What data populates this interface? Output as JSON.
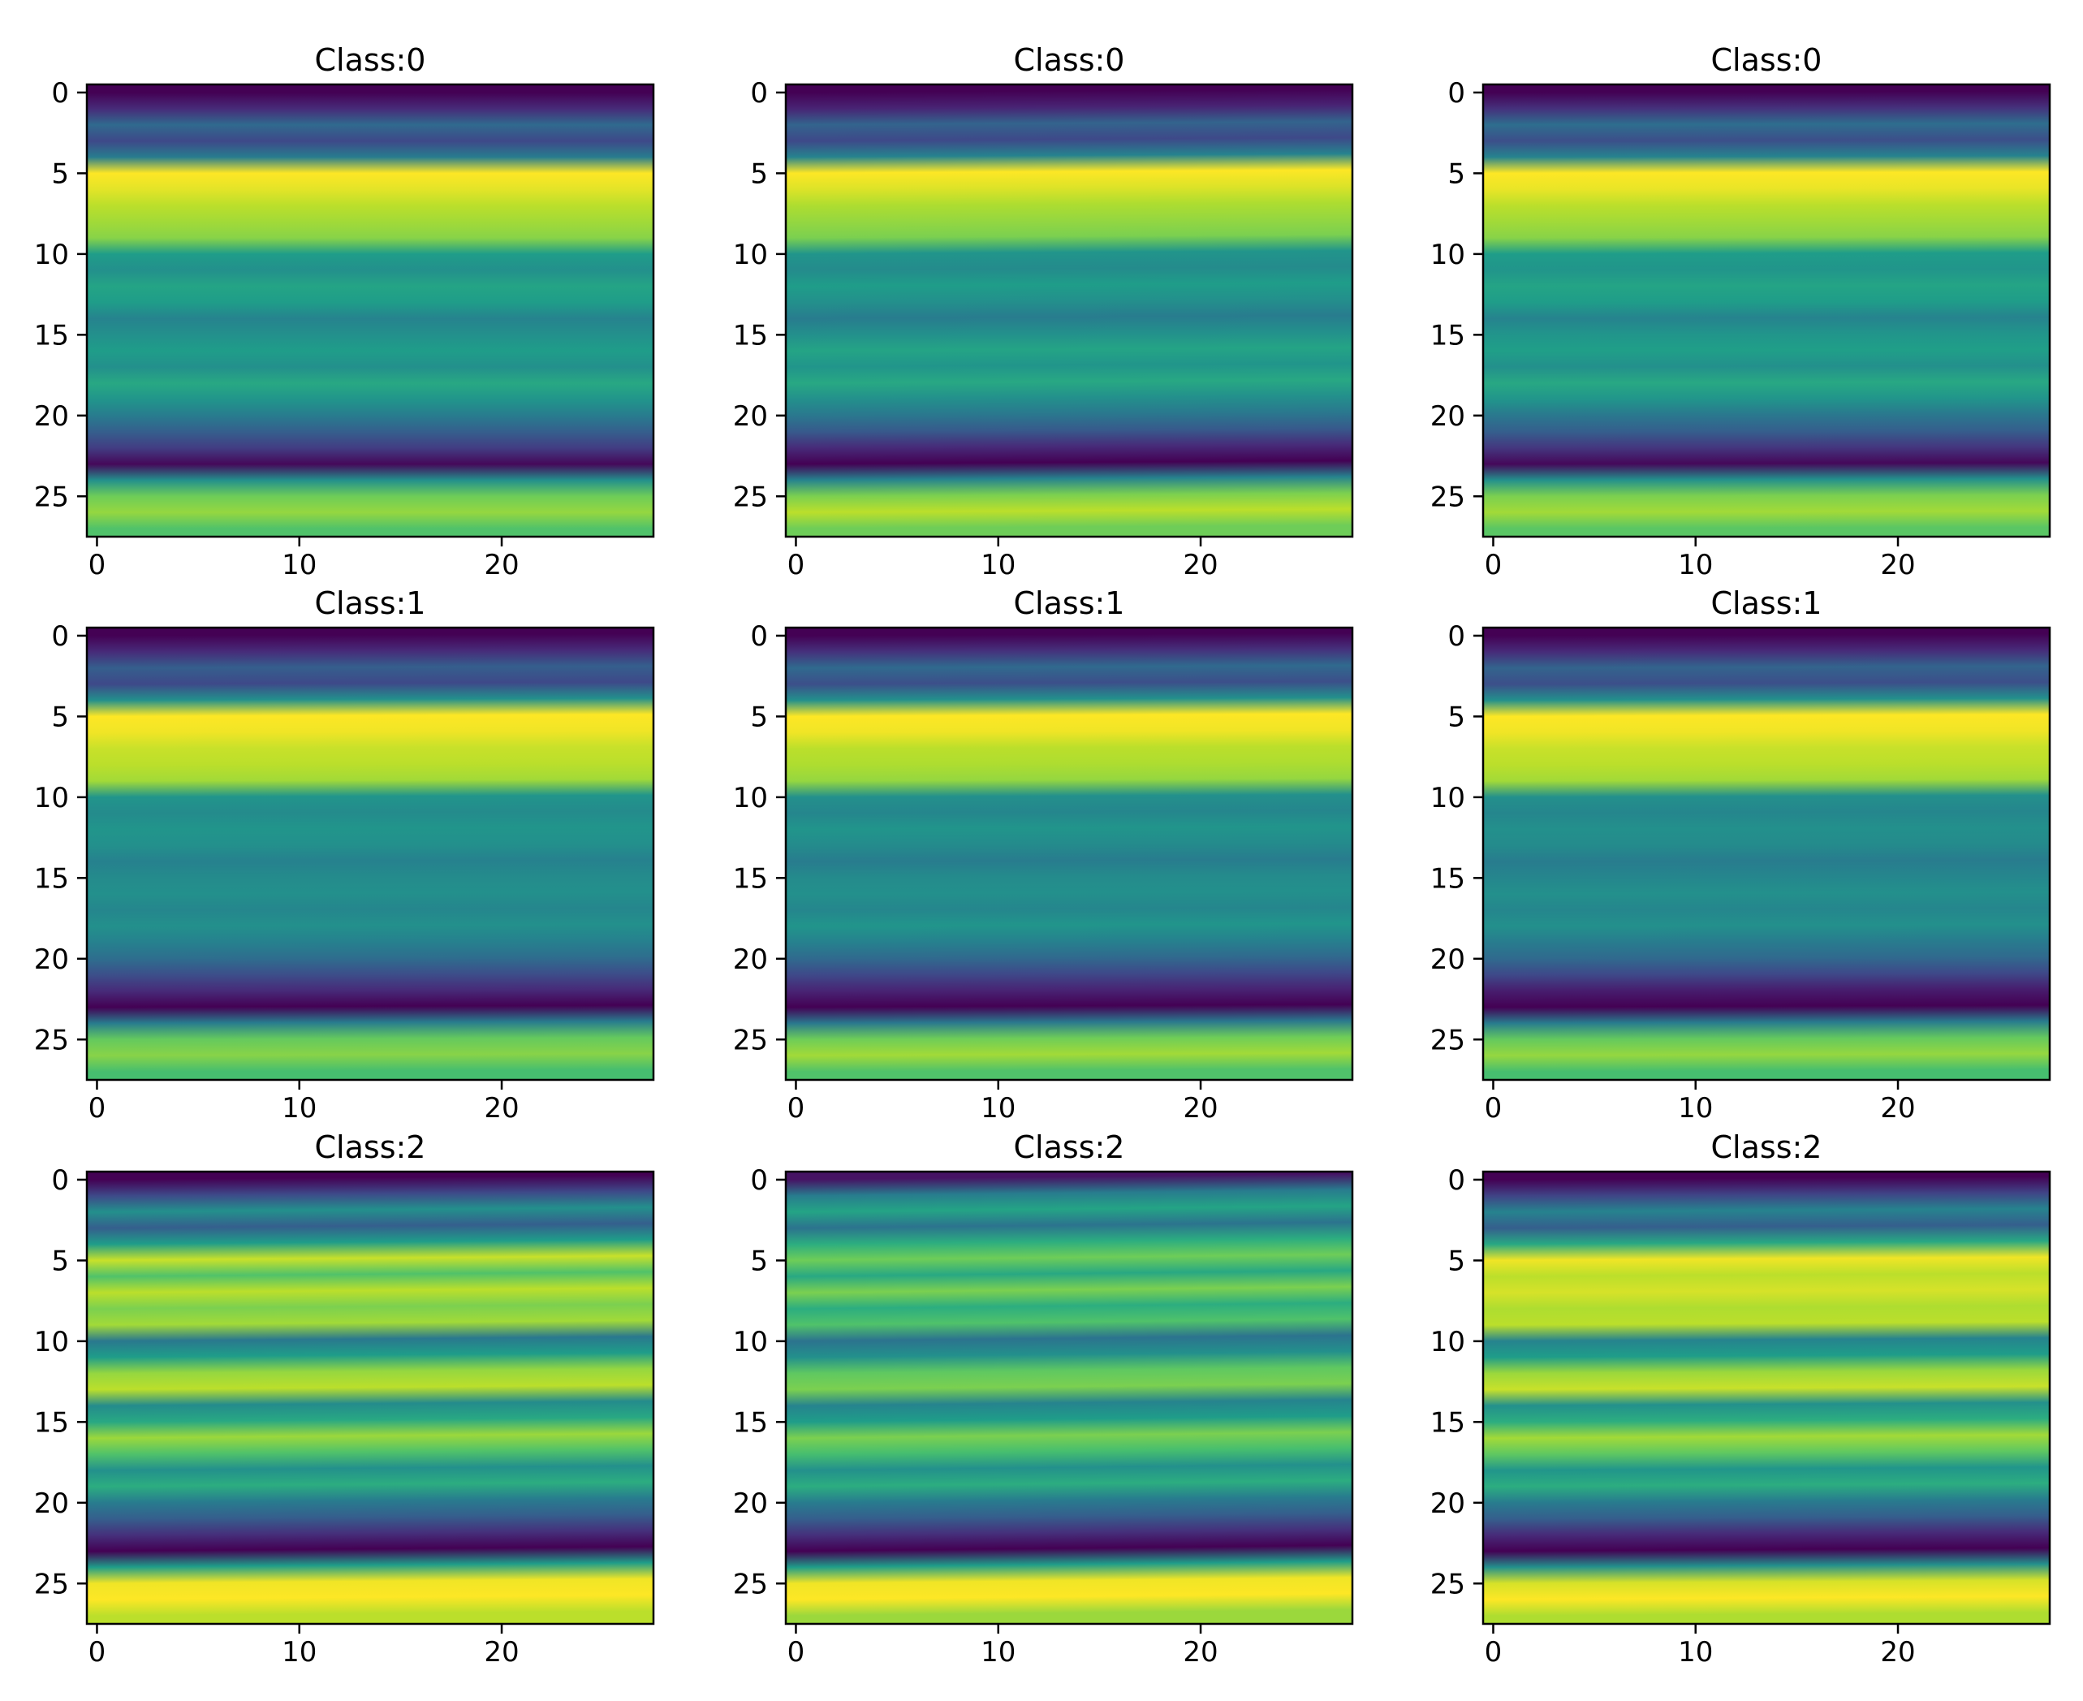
{
  "chart_data": [
    {
      "type": "heatmap",
      "title": "Class:0",
      "class_label": 0,
      "x_ticks": [
        "0",
        "10",
        "20"
      ],
      "y_ticks": [
        "0",
        "5",
        "10",
        "15",
        "20",
        "25"
      ],
      "xlim": [
        -0.5,
        27.5
      ],
      "ylim": [
        27.5,
        -0.5
      ],
      "colormap": "viridis",
      "row_values": [
        0.0,
        0.12,
        0.34,
        0.22,
        0.42,
        1.0,
        0.96,
        0.9,
        0.86,
        0.82,
        0.55,
        0.5,
        0.58,
        0.55,
        0.45,
        0.5,
        0.55,
        0.5,
        0.6,
        0.52,
        0.42,
        0.3,
        0.18,
        0.02,
        0.5,
        0.78,
        0.84,
        0.72
      ],
      "x_tilt": 0.0
    },
    {
      "type": "heatmap",
      "title": "Class:0",
      "class_label": 0,
      "x_ticks": [
        "0",
        "10",
        "20"
      ],
      "y_ticks": [
        "0",
        "5",
        "10",
        "15",
        "20",
        "25"
      ],
      "xlim": [
        -0.5,
        27.5
      ],
      "ylim": [
        27.5,
        -0.5
      ],
      "colormap": "viridis",
      "row_values": [
        0.0,
        0.1,
        0.32,
        0.22,
        0.45,
        1.0,
        0.95,
        0.88,
        0.84,
        0.8,
        0.52,
        0.48,
        0.55,
        0.5,
        0.42,
        0.5,
        0.58,
        0.52,
        0.6,
        0.5,
        0.4,
        0.28,
        0.12,
        0.0,
        0.45,
        0.8,
        0.9,
        0.78
      ],
      "x_tilt": 0.5
    },
    {
      "type": "heatmap",
      "title": "Class:0",
      "class_label": 0,
      "x_ticks": [
        "0",
        "10",
        "20"
      ],
      "y_ticks": [
        "0",
        "5",
        "10",
        "15",
        "20",
        "25"
      ],
      "xlim": [
        -0.5,
        27.5
      ],
      "ylim": [
        27.5,
        -0.5
      ],
      "colormap": "viridis",
      "row_values": [
        0.0,
        0.14,
        0.36,
        0.24,
        0.45,
        1.0,
        0.97,
        0.9,
        0.86,
        0.82,
        0.55,
        0.52,
        0.58,
        0.55,
        0.45,
        0.52,
        0.56,
        0.5,
        0.6,
        0.52,
        0.4,
        0.3,
        0.16,
        0.02,
        0.5,
        0.8,
        0.86,
        0.74
      ],
      "x_tilt": 0.2
    },
    {
      "type": "heatmap",
      "title": "Class:1",
      "class_label": 1,
      "x_ticks": [
        "0",
        "10",
        "20"
      ],
      "y_ticks": [
        "0",
        "5",
        "10",
        "15",
        "20",
        "25"
      ],
      "xlim": [
        -0.5,
        27.5
      ],
      "ylim": [
        27.5,
        -0.5
      ],
      "colormap": "viridis",
      "row_values": [
        0.0,
        0.12,
        0.3,
        0.22,
        0.5,
        1.0,
        0.98,
        0.92,
        0.9,
        0.86,
        0.52,
        0.48,
        0.52,
        0.5,
        0.44,
        0.48,
        0.5,
        0.46,
        0.5,
        0.44,
        0.36,
        0.24,
        0.12,
        0.0,
        0.42,
        0.76,
        0.82,
        0.7
      ],
      "x_tilt": 0.3
    },
    {
      "type": "heatmap",
      "title": "Class:1",
      "class_label": 1,
      "x_ticks": [
        "0",
        "10",
        "20"
      ],
      "y_ticks": [
        "0",
        "5",
        "10",
        "15",
        "20",
        "25"
      ],
      "xlim": [
        -0.5,
        27.5
      ],
      "ylim": [
        27.5,
        -0.5
      ],
      "colormap": "viridis",
      "row_values": [
        0.0,
        0.14,
        0.34,
        0.24,
        0.5,
        1.0,
        0.98,
        0.9,
        0.88,
        0.84,
        0.5,
        0.46,
        0.52,
        0.48,
        0.42,
        0.48,
        0.5,
        0.46,
        0.52,
        0.44,
        0.34,
        0.22,
        0.1,
        0.0,
        0.4,
        0.78,
        0.86,
        0.72
      ],
      "x_tilt": 0.4
    },
    {
      "type": "heatmap",
      "title": "Class:1",
      "class_label": 1,
      "x_ticks": [
        "0",
        "10",
        "20"
      ],
      "y_ticks": [
        "0",
        "5",
        "10",
        "15",
        "20",
        "25"
      ],
      "xlim": [
        -0.5,
        27.5
      ],
      "ylim": [
        27.5,
        -0.5
      ],
      "colormap": "viridis",
      "row_values": [
        0.0,
        0.12,
        0.32,
        0.24,
        0.5,
        1.0,
        0.98,
        0.92,
        0.9,
        0.86,
        0.5,
        0.46,
        0.5,
        0.48,
        0.42,
        0.46,
        0.5,
        0.46,
        0.5,
        0.42,
        0.34,
        0.22,
        0.08,
        0.0,
        0.42,
        0.76,
        0.84,
        0.7
      ],
      "x_tilt": 0.3
    },
    {
      "type": "heatmap",
      "title": "Class:2",
      "class_label": 2,
      "x_ticks": [
        "0",
        "10",
        "20"
      ],
      "y_ticks": [
        "0",
        "5",
        "10",
        "15",
        "20",
        "25"
      ],
      "xlim": [
        -0.5,
        27.5
      ],
      "ylim": [
        27.5,
        -0.5
      ],
      "colormap": "viridis",
      "row_values": [
        0.0,
        0.22,
        0.5,
        0.3,
        0.55,
        0.92,
        0.72,
        0.9,
        0.8,
        0.86,
        0.4,
        0.55,
        0.84,
        0.9,
        0.48,
        0.6,
        0.85,
        0.72,
        0.5,
        0.62,
        0.42,
        0.3,
        0.14,
        0.0,
        0.55,
        0.98,
        1.0,
        0.9
      ],
      "x_tilt": 0.7
    },
    {
      "type": "heatmap",
      "title": "Class:2",
      "class_label": 2,
      "x_ticks": [
        "0",
        "10",
        "20"
      ],
      "y_ticks": [
        "0",
        "5",
        "10",
        "15",
        "20",
        "25"
      ],
      "xlim": [
        -0.5,
        27.5
      ],
      "ylim": [
        27.5,
        -0.5
      ],
      "colormap": "viridis",
      "row_values": [
        0.05,
        0.42,
        0.58,
        0.38,
        0.62,
        0.78,
        0.6,
        0.8,
        0.62,
        0.72,
        0.38,
        0.5,
        0.75,
        0.8,
        0.45,
        0.55,
        0.8,
        0.7,
        0.5,
        0.62,
        0.42,
        0.3,
        0.14,
        0.0,
        0.55,
        0.98,
        1.0,
        0.85
      ],
      "x_tilt": 0.9
    },
    {
      "type": "heatmap",
      "title": "Class:2",
      "class_label": 2,
      "x_ticks": [
        "0",
        "10",
        "20"
      ],
      "y_ticks": [
        "0",
        "5",
        "10",
        "15",
        "20",
        "25"
      ],
      "xlim": [
        -0.5,
        27.5
      ],
      "ylim": [
        27.5,
        -0.5
      ],
      "colormap": "viridis",
      "row_values": [
        0.0,
        0.2,
        0.45,
        0.3,
        0.6,
        0.98,
        0.9,
        0.94,
        0.88,
        0.9,
        0.45,
        0.55,
        0.85,
        0.92,
        0.5,
        0.62,
        0.86,
        0.75,
        0.52,
        0.62,
        0.42,
        0.3,
        0.12,
        0.0,
        0.5,
        0.94,
        1.0,
        0.88
      ],
      "x_tilt": 0.5
    }
  ]
}
